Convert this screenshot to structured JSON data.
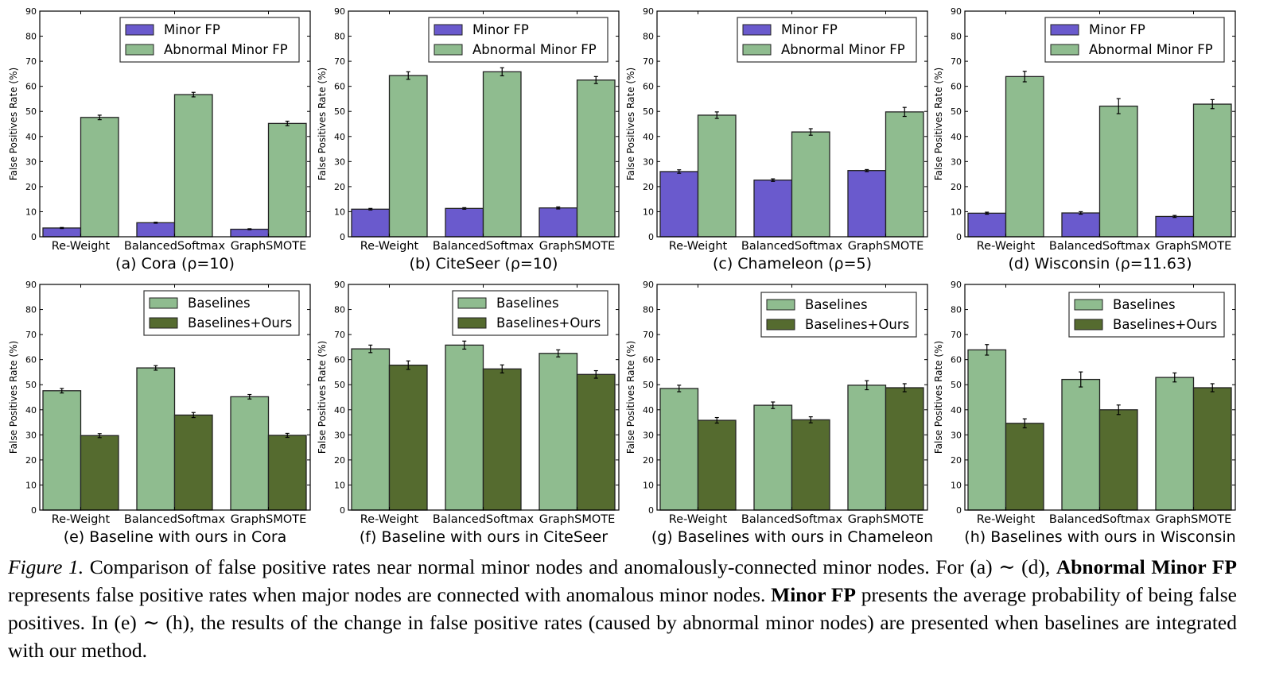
{
  "figure": {
    "caption_label": "Figure 1.",
    "caption_parts": [
      " Comparison of false positive rates near normal minor nodes and anomalously-connected minor nodes. For (a) ∼ (d), ",
      "Abnormal Minor FP",
      " represents false positive rates when major nodes are connected with anomalous minor nodes. ",
      "Minor FP",
      " presents the average probability of being false positives. In (e) ∼ (h), the results of the change in false positive rates (caused by abnormal minor nodes) are presented when baselines are integrated with our method."
    ]
  },
  "colors": {
    "minor_fp": "#6a5acd",
    "abnormal": "#8fbc8f",
    "baselines": "#8fbc8f",
    "ours": "#556b2f"
  },
  "chart_data": [
    {
      "type": "bar",
      "title": "(a) Cora (ρ=10)",
      "ylabel": "False Positives Rate (%)",
      "ylim": [
        0,
        90
      ],
      "yticks": [
        0,
        10,
        20,
        30,
        40,
        50,
        60,
        70,
        80,
        90
      ],
      "categories": [
        "Re-Weight",
        "BalancedSoftmax",
        "GraphSMOTE"
      ],
      "legend": "top-right",
      "series": [
        {
          "name": "Minor FP",
          "color": "#6a5acd",
          "values": [
            3.5,
            5.6,
            3.0
          ],
          "errors": [
            0.2,
            0.2,
            0.2
          ]
        },
        {
          "name": "Abnormal Minor FP",
          "color": "#8fbc8f",
          "values": [
            47.6,
            56.7,
            45.2
          ],
          "errors": [
            0.9,
            0.9,
            0.9
          ]
        }
      ]
    },
    {
      "type": "bar",
      "title": "(b) CiteSeer (ρ=10)",
      "ylabel": "False Positives Rate (%)",
      "ylim": [
        0,
        90
      ],
      "yticks": [
        0,
        10,
        20,
        30,
        40,
        50,
        60,
        70,
        80,
        90
      ],
      "categories": [
        "Re-Weight",
        "BalancedSoftmax",
        "GraphSMOTE"
      ],
      "legend": "top-right",
      "series": [
        {
          "name": "Minor FP",
          "color": "#6a5acd",
          "values": [
            11.0,
            11.3,
            11.5
          ],
          "errors": [
            0.3,
            0.3,
            0.4
          ]
        },
        {
          "name": "Abnormal Minor FP",
          "color": "#8fbc8f",
          "values": [
            64.3,
            65.8,
            62.5
          ],
          "errors": [
            1.5,
            1.6,
            1.4
          ]
        }
      ]
    },
    {
      "type": "bar",
      "title": "(c) Chameleon (ρ=5)",
      "ylabel": "False Positives Rate (%)",
      "ylim": [
        0,
        90
      ],
      "yticks": [
        0,
        10,
        20,
        30,
        40,
        50,
        60,
        70,
        80,
        90
      ],
      "categories": [
        "Re-Weight",
        "BalancedSoftmax",
        "GraphSMOTE"
      ],
      "legend": "top-right",
      "series": [
        {
          "name": "Minor FP",
          "color": "#6a5acd",
          "values": [
            26.0,
            22.6,
            26.4
          ],
          "errors": [
            0.7,
            0.5,
            0.4
          ]
        },
        {
          "name": "Abnormal Minor FP",
          "color": "#8fbc8f",
          "values": [
            48.5,
            41.8,
            49.8
          ],
          "errors": [
            1.3,
            1.3,
            1.8
          ]
        }
      ]
    },
    {
      "type": "bar",
      "title": "(d) Wisconsin (ρ=11.63)",
      "ylabel": "False Positives Rate (%)",
      "ylim": [
        0,
        90
      ],
      "yticks": [
        0,
        10,
        20,
        30,
        40,
        50,
        60,
        70,
        80,
        90
      ],
      "categories": [
        "Re-Weight",
        "BalancedSoftmax",
        "GraphSMOTE"
      ],
      "legend": "top-right",
      "series": [
        {
          "name": "Minor FP",
          "color": "#6a5acd",
          "values": [
            9.4,
            9.5,
            8.1
          ],
          "errors": [
            0.4,
            0.5,
            0.4
          ]
        },
        {
          "name": "Abnormal Minor FP",
          "color": "#8fbc8f",
          "values": [
            63.9,
            52.1,
            52.9
          ],
          "errors": [
            2.1,
            3.0,
            1.8
          ]
        }
      ]
    },
    {
      "type": "bar",
      "title": "(e) Baseline with ours in Cora",
      "ylabel": "False Positives Rate (%)",
      "ylim": [
        0,
        90
      ],
      "yticks": [
        0,
        10,
        20,
        30,
        40,
        50,
        60,
        70,
        80,
        90
      ],
      "categories": [
        "Re-Weight",
        "BalancedSoftmax",
        "GraphSMOTE"
      ],
      "legend": "top-right",
      "series": [
        {
          "name": "Baselines",
          "color": "#8fbc8f",
          "values": [
            47.6,
            56.7,
            45.2
          ],
          "errors": [
            0.9,
            0.9,
            0.9
          ]
        },
        {
          "name": "Baselines+Ours",
          "color": "#556b2f",
          "values": [
            29.7,
            37.9,
            29.8
          ],
          "errors": [
            0.8,
            1.0,
            0.8
          ]
        }
      ]
    },
    {
      "type": "bar",
      "title": "(f) Baseline with ours in CiteSeer",
      "ylabel": "False Positives Rate (%)",
      "ylim": [
        0,
        90
      ],
      "yticks": [
        0,
        10,
        20,
        30,
        40,
        50,
        60,
        70,
        80,
        90
      ],
      "categories": [
        "Re-Weight",
        "BalancedSoftmax",
        "GraphSMOTE"
      ],
      "legend": "top-right",
      "series": [
        {
          "name": "Baselines",
          "color": "#8fbc8f",
          "values": [
            64.3,
            65.8,
            62.5
          ],
          "errors": [
            1.5,
            1.6,
            1.4
          ]
        },
        {
          "name": "Baselines+Ours",
          "color": "#556b2f",
          "values": [
            57.8,
            56.3,
            54.1
          ],
          "errors": [
            1.7,
            1.6,
            1.5
          ]
        }
      ]
    },
    {
      "type": "bar",
      "title": "(g) Baselines with ours in Chameleon",
      "ylabel": "False Positives Rate (%)",
      "ylim": [
        0,
        90
      ],
      "yticks": [
        0,
        10,
        20,
        30,
        40,
        50,
        60,
        70,
        80,
        90
      ],
      "categories": [
        "Re-Weight",
        "BalancedSoftmax",
        "GraphSMOTE"
      ],
      "legend": "top-right",
      "series": [
        {
          "name": "Baselines",
          "color": "#8fbc8f",
          "values": [
            48.5,
            41.8,
            49.8
          ],
          "errors": [
            1.3,
            1.3,
            1.8
          ]
        },
        {
          "name": "Baselines+Ours",
          "color": "#556b2f",
          "values": [
            35.8,
            36.0,
            48.8
          ],
          "errors": [
            1.1,
            1.2,
            1.6
          ]
        }
      ]
    },
    {
      "type": "bar",
      "title": "(h) Baselines with ours in Wisconsin",
      "ylabel": "False Positives Rate (%)",
      "ylim": [
        0,
        90
      ],
      "yticks": [
        0,
        10,
        20,
        30,
        40,
        50,
        60,
        70,
        80,
        90
      ],
      "categories": [
        "Re-Weight",
        "BalancedSoftmax",
        "GraphSMOTE"
      ],
      "legend": "top-right",
      "series": [
        {
          "name": "Baselines",
          "color": "#8fbc8f",
          "values": [
            63.9,
            52.1,
            52.9
          ],
          "errors": [
            2.1,
            3.0,
            1.8
          ]
        },
        {
          "name": "Baselines+Ours",
          "color": "#556b2f",
          "values": [
            34.6,
            40.0,
            48.8
          ],
          "errors": [
            1.8,
            1.9,
            1.6
          ]
        }
      ]
    }
  ]
}
